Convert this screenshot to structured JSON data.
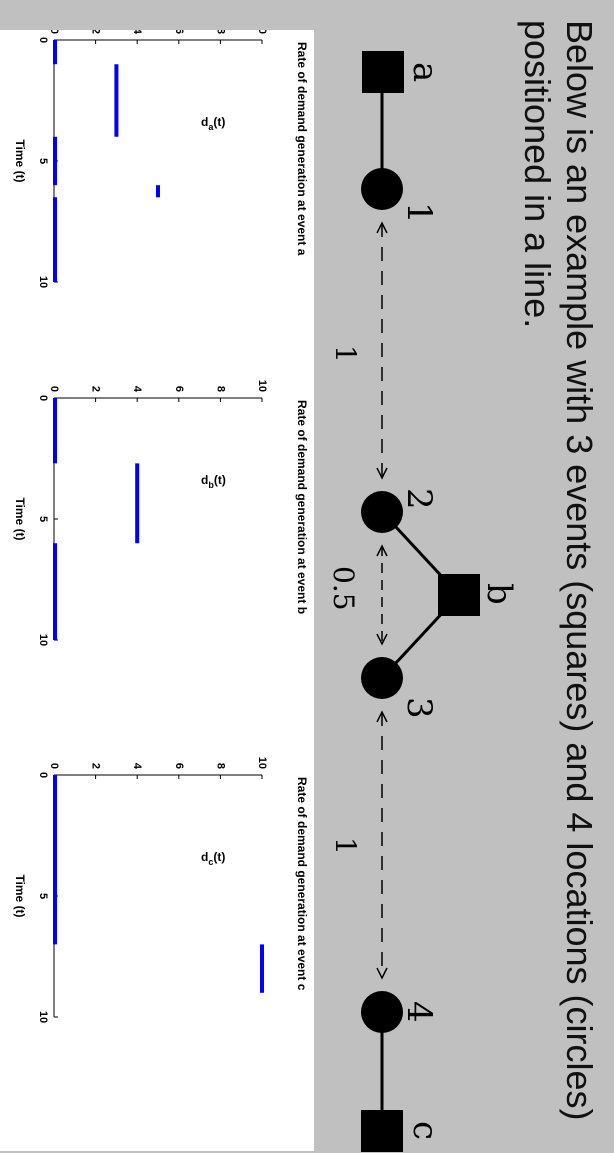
{
  "caption": "Below is an example with 3 events (squares) and 4 locations (circles) positioned in a line.",
  "diagram": {
    "events": [
      {
        "label": "a"
      },
      {
        "label": "b"
      },
      {
        "label": "c"
      }
    ],
    "locations": [
      {
        "label": "1"
      },
      {
        "label": "2"
      },
      {
        "label": "3"
      },
      {
        "label": "4"
      }
    ],
    "distances": [
      {
        "label": "1"
      },
      {
        "label": "0.5"
      },
      {
        "label": "1"
      }
    ],
    "colors": {
      "node": "#000000",
      "line": "#000000"
    }
  },
  "chart_data": [
    {
      "type": "line",
      "title": "Rate of demand generation at event a",
      "xlabel": "Time (t)",
      "ylabel": "d_a(t)",
      "xlim": [
        0,
        10
      ],
      "ylim": [
        0,
        10
      ],
      "xticks": [
        "0",
        "5",
        "10"
      ],
      "yticks": [
        "0",
        "2",
        "4",
        "6",
        "8",
        "10"
      ],
      "color": "#0000ff",
      "segments": [
        {
          "x": [
            0,
            1
          ],
          "y": 0
        },
        {
          "x": [
            1,
            4
          ],
          "y": 3
        },
        {
          "x": [
            4,
            6
          ],
          "y": 0
        },
        {
          "x": [
            6,
            6.5
          ],
          "y": 5
        },
        {
          "x": [
            6.5,
            10
          ],
          "y": 0
        }
      ]
    },
    {
      "type": "line",
      "title": "Rate of demand generation at event b",
      "xlabel": "Time (t)",
      "ylabel": "d_b(t)",
      "xlim": [
        0,
        10
      ],
      "ylim": [
        0,
        10
      ],
      "xticks": [
        "0",
        "5",
        "10"
      ],
      "yticks": [
        "0",
        "2",
        "4",
        "6",
        "8",
        "10"
      ],
      "color": "#0000ff",
      "segments": [
        {
          "x": [
            0,
            2.7
          ],
          "y": 0
        },
        {
          "x": [
            2.7,
            6
          ],
          "y": 4
        },
        {
          "x": [
            6,
            10
          ],
          "y": 0
        }
      ]
    },
    {
      "type": "line",
      "title": "Rate of demand generation at event c",
      "xlabel": "Time (t)",
      "ylabel": "d_c(t)",
      "xlim": [
        0,
        10
      ],
      "ylim": [
        0,
        10
      ],
      "xticks": [
        "0",
        "5",
        "10"
      ],
      "yticks": [
        "0",
        "2",
        "4",
        "6",
        "8",
        "10"
      ],
      "color": "#0000ff",
      "segments": [
        {
          "x": [
            0,
            7
          ],
          "y": 0
        },
        {
          "x": [
            7,
            9
          ],
          "y": 10
        }
      ]
    }
  ]
}
